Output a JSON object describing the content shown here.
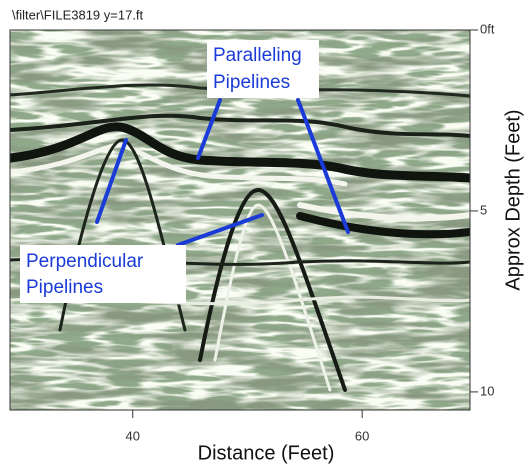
{
  "chart_data": {
    "type": "radargram",
    "header": "\\filter\\FILE3819   y=17.ft",
    "xlabel": "Distance (Feet)",
    "ylabel": "Approx Depth (Feet)",
    "xlim": [
      29.3,
      69.4
    ],
    "xticks": [
      40,
      60
    ],
    "ylim": [
      0,
      10.5
    ],
    "yticks": [
      {
        "value": 0,
        "label": "0ft"
      },
      5,
      10
    ],
    "annotations": [
      {
        "lines": [
          "Paralleling",
          "Pipelines"
        ]
      },
      {
        "lines": [
          "Perpendicular",
          "Pipelines"
        ]
      }
    ]
  }
}
